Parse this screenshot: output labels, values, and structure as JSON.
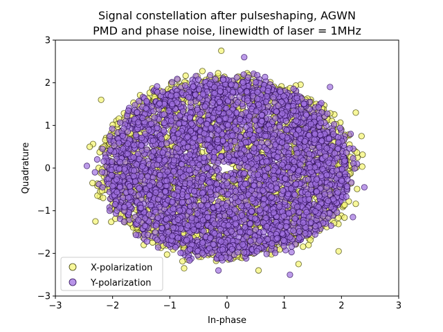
{
  "chart_data": {
    "type": "scatter",
    "title_line1": "Signal constellation after pulseshaping, AGWN",
    "title_line2": "PMD and phase noise, linewidth of laser = 1MHz",
    "xlabel": "In-phase",
    "ylabel": "Quadrature",
    "xlim": [
      -3,
      3
    ],
    "ylim": [
      -3,
      3
    ],
    "xticks": [
      -3,
      -2,
      -1,
      0,
      1,
      2,
      3
    ],
    "yticks": [
      -3,
      -2,
      -1,
      0,
      1,
      2,
      3
    ],
    "grid": false,
    "legend_position": "lower-left",
    "series": [
      {
        "name": "X-polarization",
        "face_color": "#f5f57a",
        "edge_color": "#3a3a00",
        "distribution": {
          "center": [
            0,
            0
          ],
          "radius_x": 2.3,
          "radius_y": 2.2,
          "count": 2600
        },
        "outliers": [
          [
            -0.1,
            2.75
          ],
          [
            -2.2,
            1.6
          ],
          [
            2.25,
            1.3
          ],
          [
            -2.35,
            -0.35
          ],
          [
            0.55,
            -2.4
          ],
          [
            -0.75,
            -2.35
          ],
          [
            1.25,
            -2.25
          ],
          [
            -2.3,
            -1.25
          ],
          [
            2.35,
            0.75
          ],
          [
            1.95,
            -1.95
          ],
          [
            -2.4,
            0.5
          ]
        ]
      },
      {
        "name": "Y-polarization",
        "face_color": "#a070e0",
        "edge_color": "#2a0a55",
        "distribution": {
          "center": [
            0,
            0
          ],
          "radius_x": 2.2,
          "radius_y": 2.15,
          "count": 3400
        },
        "outliers": [
          [
            0.3,
            2.6
          ],
          [
            1.1,
            -2.5
          ],
          [
            2.4,
            -0.45
          ],
          [
            -2.45,
            0.05
          ],
          [
            2.2,
            -1.15
          ],
          [
            -0.15,
            -2.4
          ],
          [
            1.8,
            1.9
          ],
          [
            -2.05,
            -1.0
          ]
        ]
      }
    ]
  }
}
